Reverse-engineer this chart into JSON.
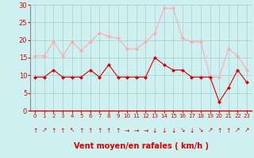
{
  "hours": [
    0,
    1,
    2,
    3,
    4,
    5,
    6,
    7,
    8,
    9,
    10,
    11,
    12,
    13,
    14,
    15,
    16,
    17,
    18,
    19,
    20,
    21,
    22,
    23
  ],
  "wind_avg": [
    9.5,
    9.5,
    11.5,
    9.5,
    9.5,
    9.5,
    11.5,
    9.5,
    13,
    9.5,
    9.5,
    9.5,
    9.5,
    15,
    13,
    11.5,
    11.5,
    9.5,
    9.5,
    9.5,
    2.5,
    6.5,
    11.5,
    8
  ],
  "wind_gust": [
    15.5,
    15.5,
    19.5,
    15.5,
    19.5,
    17,
    19.5,
    22,
    21,
    20.5,
    17.5,
    17.5,
    19.5,
    22,
    29,
    29,
    20.5,
    19.5,
    19.5,
    9.5,
    9.5,
    17.5,
    15.5,
    11.5
  ],
  "wind_avg_color": "#dd0000",
  "wind_gust_color": "#ffaaaa",
  "bg_color": "#cff0f0",
  "grid_color": "#aacccc",
  "xlabel": "Vent moyen/en rafales ( km/h )",
  "xlabel_color": "#dd0000",
  "tick_color": "#dd0000",
  "ylim": [
    0,
    30
  ],
  "yticks": [
    0,
    5,
    10,
    15,
    20,
    25,
    30
  ],
  "arrows": [
    "↑",
    "↗",
    "↑",
    "↑",
    "↖",
    "↑",
    "↑",
    "↑",
    "↑",
    "↑",
    "→",
    "→",
    "→",
    "↓",
    "↓",
    "↓",
    "↘",
    "↓",
    "↘",
    "↗",
    "↑",
    "↑",
    "↗",
    "↗"
  ]
}
